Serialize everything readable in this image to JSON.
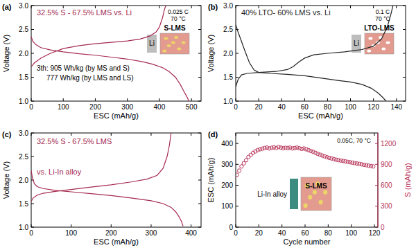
{
  "chart_data": [
    {
      "type": "line",
      "xlabel": "ESC (mAh/g)",
      "ylabel": "Voltage (V)",
      "annotations": [
        "(a)",
        "32.5% S - 67.5% LMS vs. Li",
        "0.025 C",
        "70 °C",
        "S-LMS",
        "Li",
        "3th: 905 Wh/kg (by MS and S)",
        "777 Wh/kg (by LMS and LS)"
      ],
      "xlim": [
        0,
        530
      ],
      "ylim": [
        1.0,
        3.0
      ],
      "xticks": [
        0,
        100,
        200,
        300,
        400,
        500
      ],
      "yticks": [
        {
          "value": 1.0,
          "label": "1.0"
        },
        {
          "value": 1.5,
          "label": "1.5"
        },
        {
          "value": 2.0,
          "label": "2.0"
        },
        {
          "value": 2.5,
          "label": "2.5"
        },
        {
          "value": 3.0,
          "label": "3.0"
        }
      ],
      "series": [
        {
          "color": "#a52a4f",
          "line_style": "solid",
          "x": [
            0,
            5,
            15,
            30,
            60,
            100,
            150,
            200,
            250,
            300,
            350,
            380,
            410,
            430,
            450,
            465,
            475,
            485,
            492
          ],
          "values": [
            2.35,
            2.25,
            2.18,
            2.12,
            2.07,
            2.03,
            1.99,
            1.96,
            1.92,
            1.88,
            1.82,
            1.77,
            1.7,
            1.62,
            1.5,
            1.35,
            1.22,
            1.1,
            1.0
          ]
        },
        {
          "color": "#a52a4f",
          "line_style": "solid",
          "x": [
            0,
            10,
            30,
            60,
            100,
            150,
            200,
            250,
            300,
            340,
            370,
            390,
            400,
            410,
            415,
            420
          ],
          "values": [
            1.72,
            1.8,
            1.9,
            2.0,
            2.1,
            2.16,
            2.2,
            2.23,
            2.26,
            2.3,
            2.36,
            2.45,
            2.55,
            2.75,
            2.9,
            3.0
          ]
        }
      ]
    },
    {
      "type": "line",
      "xlabel": "ESC (mAh/g)",
      "ylabel": "Voltage (V)",
      "annotations": [
        "(b)",
        "40% LTO- 60% LMS vs. Li",
        "0.1 C",
        "70 °C",
        "LTO-LMS",
        "Li"
      ],
      "xlim": [
        0,
        148
      ],
      "ylim": [
        1.0,
        3.0
      ],
      "xticks": [
        0,
        20,
        40,
        60,
        80,
        100,
        120,
        140
      ],
      "yticks": [
        {
          "value": 1.0,
          "label": "1.0"
        },
        {
          "value": 1.5,
          "label": "1.5"
        },
        {
          "value": 2.0,
          "label": "2.0"
        },
        {
          "value": 2.5,
          "label": "2.5"
        },
        {
          "value": 3.0,
          "label": "3.0"
        }
      ],
      "series": [
        {
          "color": "#222222",
          "line_style": "solid",
          "x": [
            0,
            2,
            5,
            8,
            12,
            16,
            20,
            30,
            45,
            60,
            75,
            90,
            100,
            110,
            118,
            124,
            128,
            131
          ],
          "values": [
            2.6,
            2.45,
            2.25,
            2.05,
            1.8,
            1.65,
            1.6,
            1.58,
            1.56,
            1.53,
            1.48,
            1.43,
            1.4,
            1.35,
            1.27,
            1.17,
            1.08,
            1.0
          ]
        },
        {
          "color": "#222222",
          "line_style": "solid",
          "x": [
            0,
            2,
            5,
            10,
            20,
            35,
            45,
            50,
            55,
            60,
            68,
            80,
            95,
            110,
            120,
            127,
            132,
            135,
            137
          ],
          "values": [
            1.3,
            1.45,
            1.55,
            1.58,
            1.6,
            1.62,
            1.66,
            1.72,
            1.82,
            1.9,
            1.97,
            2.0,
            2.03,
            2.08,
            2.15,
            2.3,
            2.55,
            2.8,
            3.0
          ]
        }
      ]
    },
    {
      "type": "line",
      "xlabel": "ESC (mAh/g)",
      "ylabel": "Voltage (V)",
      "annotations": [
        "(c)",
        "32.5% S - 67.5% LMS",
        "vs. Li-In alloy"
      ],
      "xlim": [
        0,
        425
      ],
      "ylim": [
        1.0,
        3.0
      ],
      "xticks": [
        0,
        100,
        200,
        300,
        400
      ],
      "yticks": [
        {
          "value": 1.0,
          "label": "1.0"
        },
        {
          "value": 1.5,
          "label": "1.5"
        },
        {
          "value": 2.0,
          "label": "2.0"
        },
        {
          "value": 2.5,
          "label": "2.5"
        },
        {
          "value": 3.0,
          "label": "3.0"
        }
      ],
      "series": [
        {
          "color": "#a52a4f",
          "line_style": "solid",
          "x": [
            0,
            3,
            8,
            15,
            30,
            60,
            100,
            150,
            200,
            250,
            300,
            330,
            350,
            362,
            370,
            376,
            380
          ],
          "values": [
            2.2,
            2.05,
            1.92,
            1.86,
            1.82,
            1.78,
            1.75,
            1.71,
            1.67,
            1.62,
            1.56,
            1.5,
            1.42,
            1.32,
            1.22,
            1.12,
            1.02
          ]
        },
        {
          "color": "#a52a4f",
          "line_style": "solid",
          "x": [
            0,
            5,
            15,
            30,
            60,
            100,
            150,
            200,
            250,
            290,
            315,
            330,
            340,
            346,
            350
          ],
          "values": [
            1.55,
            1.62,
            1.68,
            1.72,
            1.76,
            1.8,
            1.85,
            1.9,
            1.96,
            2.02,
            2.1,
            2.25,
            2.5,
            2.75,
            3.0
          ]
        }
      ]
    },
    {
      "type": "scatter",
      "xlabel": "Cycle number",
      "ylabel": "ESC (mAh/g)",
      "y2label": "S (mAh/g)",
      "annotations": [
        "(d)",
        "0.05C, 70 °C",
        "Li-In alloy",
        "S-LMS"
      ],
      "xlim": [
        0,
        123
      ],
      "ylim": [
        0,
        450
      ],
      "y2lim": [
        0,
        1350
      ],
      "xticks": [
        0,
        20,
        40,
        60,
        80,
        100,
        120
      ],
      "yticks": [
        0,
        100,
        200,
        300,
        400
      ],
      "y2ticks": [
        0,
        300,
        600,
        900,
        1200
      ],
      "series": [
        {
          "color": "#b8345a",
          "marker": "circle",
          "x": [
            1,
            3,
            5,
            7,
            9,
            11,
            13,
            15,
            17,
            19,
            21,
            23,
            25,
            27,
            29,
            31,
            33,
            35,
            37,
            39,
            41,
            43,
            45,
            47,
            49,
            51,
            53,
            55,
            57,
            59,
            61,
            63,
            65,
            67,
            69,
            71,
            73,
            75,
            77,
            79,
            81,
            83,
            85,
            87,
            89,
            91,
            93,
            95,
            97,
            99,
            101,
            103,
            105,
            107,
            109,
            111,
            113,
            115,
            117,
            119
          ],
          "values": [
            250,
            270,
            290,
            305,
            320,
            335,
            345,
            355,
            362,
            368,
            372,
            375,
            378,
            380,
            376,
            379,
            381,
            378,
            383,
            380,
            377,
            379,
            378,
            380,
            376,
            378,
            380,
            377,
            374,
            376,
            372,
            368,
            364,
            360,
            355,
            350,
            346,
            342,
            338,
            334,
            331,
            328,
            325,
            322,
            320,
            318,
            316,
            314,
            312,
            310,
            308,
            306,
            304,
            302,
            300,
            298,
            296,
            294,
            292,
            290
          ]
        }
      ]
    }
  ]
}
